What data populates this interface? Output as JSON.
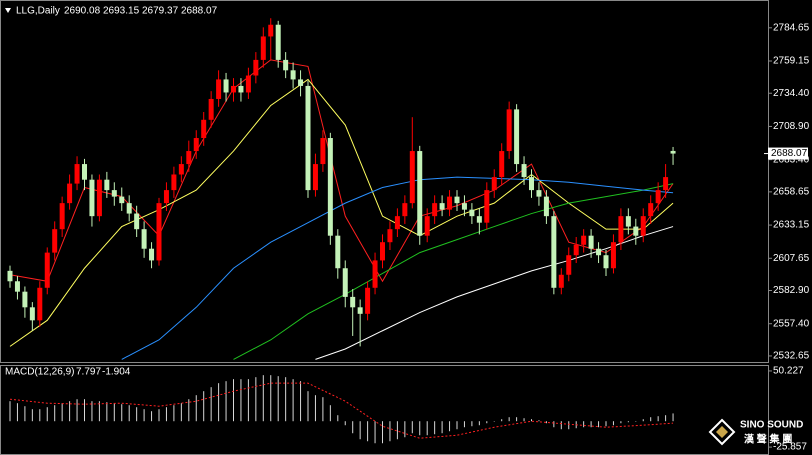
{
  "chart_data": [
    {
      "type": "candlestick",
      "title": "LLG,Daily",
      "open": [
        2598,
        2590,
        2582,
        2570,
        2560,
        2585,
        2612,
        2630,
        2650,
        2665,
        2680,
        2668,
        2640,
        2668,
        2660,
        2655,
        2650,
        2642,
        2630,
        2615,
        2606,
        2650,
        2660,
        2672,
        2680,
        2690,
        2700,
        2714,
        2730,
        2745,
        2735,
        2740,
        2735,
        2748,
        2760,
        2778,
        2787,
        2760,
        2752,
        2745,
        2740,
        2660,
        2680,
        2700,
        2625,
        2600,
        2578,
        2570,
        2565,
        2585,
        2606,
        2620,
        2630,
        2640,
        2650,
        2690,
        2625,
        2640,
        2650,
        2645,
        2655,
        2650,
        2645,
        2640,
        2635,
        2660,
        2670,
        2690,
        2722,
        2680,
        2670,
        2660,
        2655,
        2640,
        2585,
        2595,
        2610,
        2618,
        2625,
        2615,
        2610,
        2600,
        2620,
        2640,
        2632,
        2625,
        2640,
        2650,
        2660,
        2690.08
      ],
      "high": [
        2602,
        2594,
        2586,
        2574,
        2590,
        2616,
        2636,
        2655,
        2672,
        2686,
        2684,
        2672,
        2672,
        2674,
        2666,
        2662,
        2656,
        2648,
        2636,
        2620,
        2654,
        2666,
        2678,
        2686,
        2698,
        2706,
        2720,
        2736,
        2752,
        2750,
        2746,
        2746,
        2754,
        2766,
        2785,
        2792,
        2790,
        2766,
        2758,
        2752,
        2744,
        2688,
        2706,
        2704,
        2630,
        2606,
        2584,
        2576,
        2590,
        2612,
        2626,
        2636,
        2646,
        2656,
        2716,
        2694,
        2646,
        2656,
        2656,
        2660,
        2660,
        2656,
        2650,
        2646,
        2666,
        2676,
        2696,
        2728,
        2726,
        2686,
        2676,
        2666,
        2660,
        2644,
        2600,
        2616,
        2624,
        2630,
        2630,
        2620,
        2614,
        2626,
        2646,
        2646,
        2638,
        2646,
        2656,
        2666,
        2680,
        2693.15
      ],
      "low": [
        2585,
        2576,
        2562,
        2552,
        2555,
        2580,
        2606,
        2624,
        2645,
        2660,
        2660,
        2632,
        2636,
        2654,
        2648,
        2644,
        2636,
        2624,
        2608,
        2600,
        2602,
        2644,
        2654,
        2666,
        2674,
        2684,
        2694,
        2708,
        2724,
        2728,
        2728,
        2728,
        2730,
        2742,
        2754,
        2760,
        2754,
        2746,
        2738,
        2732,
        2654,
        2655,
        2674,
        2618,
        2592,
        2570,
        2548,
        2540,
        2560,
        2580,
        2600,
        2614,
        2624,
        2634,
        2646,
        2618,
        2620,
        2634,
        2640,
        2640,
        2644,
        2640,
        2634,
        2626,
        2630,
        2654,
        2664,
        2684,
        2674,
        2664,
        2654,
        2648,
        2634,
        2580,
        2580,
        2590,
        2604,
        2612,
        2608,
        2604,
        2594,
        2596,
        2614,
        2626,
        2618,
        2620,
        2634,
        2644,
        2654,
        2679.37
      ],
      "close": [
        2590,
        2582,
        2570,
        2560,
        2585,
        2612,
        2630,
        2650,
        2665,
        2680,
        2668,
        2640,
        2668,
        2660,
        2655,
        2650,
        2642,
        2630,
        2615,
        2606,
        2650,
        2660,
        2672,
        2680,
        2690,
        2700,
        2714,
        2730,
        2745,
        2735,
        2740,
        2735,
        2748,
        2760,
        2778,
        2787,
        2760,
        2752,
        2745,
        2740,
        2660,
        2680,
        2700,
        2625,
        2600,
        2578,
        2570,
        2565,
        2585,
        2606,
        2620,
        2630,
        2640,
        2650,
        2690,
        2625,
        2640,
        2650,
        2645,
        2655,
        2650,
        2645,
        2640,
        2635,
        2660,
        2670,
        2690,
        2722,
        2680,
        2670,
        2660,
        2655,
        2640,
        2585,
        2595,
        2610,
        2618,
        2625,
        2615,
        2610,
        2600,
        2620,
        2640,
        2632,
        2625,
        2640,
        2650,
        2660,
        2670,
        2688.07
      ],
      "up_color": "#ff0000",
      "down_color": "#c4f2b8",
      "series": [
        {
          "color": "#ff2020",
          "x": [
            0,
            5,
            10,
            15,
            20,
            25,
            30,
            35,
            40,
            45,
            50,
            55,
            60,
            65,
            70,
            75,
            80,
            85,
            89
          ],
          "values": [
            2595,
            2590,
            2662,
            2655,
            2625,
            2690,
            2738,
            2760,
            2755,
            2640,
            2590,
            2640,
            2648,
            2660,
            2680,
            2620,
            2612,
            2632,
            2665
          ]
        },
        {
          "color": "#ffff60",
          "x": [
            0,
            5,
            10,
            15,
            20,
            25,
            30,
            35,
            40,
            45,
            50,
            55,
            60,
            65,
            70,
            75,
            80,
            85,
            89
          ],
          "values": [
            2540,
            2560,
            2600,
            2632,
            2645,
            2660,
            2690,
            2725,
            2745,
            2710,
            2640,
            2625,
            2640,
            2650,
            2672,
            2650,
            2630,
            2630,
            2650
          ]
        },
        {
          "color": "#20c020",
          "x": [
            30,
            35,
            40,
            45,
            50,
            55,
            60,
            65,
            70,
            75,
            80,
            85,
            89
          ],
          "values": [
            2530,
            2545,
            2565,
            2580,
            2596,
            2612,
            2622,
            2632,
            2642,
            2650,
            2655,
            2660,
            2665
          ]
        },
        {
          "color": "#2a90ff",
          "x": [
            15,
            20,
            25,
            30,
            35,
            40,
            45,
            50,
            55,
            60,
            65,
            70,
            75,
            80,
            85,
            89
          ],
          "values": [
            2530,
            2545,
            2570,
            2600,
            2620,
            2635,
            2650,
            2662,
            2668,
            2670,
            2669,
            2668,
            2666,
            2663,
            2660,
            2658
          ]
        },
        {
          "color": "#ffffff",
          "x": [
            41,
            45,
            50,
            55,
            60,
            65,
            70,
            75,
            80,
            85,
            89
          ],
          "values": [
            2530,
            2538,
            2552,
            2566,
            2578,
            2588,
            2598,
            2606,
            2615,
            2625,
            2632
          ]
        }
      ],
      "ylim": [
        2528,
        2806
      ],
      "yticks": [
        2784.65,
        2759.15,
        {
          "value": 2734.4,
          "label": "2734.40"
        },
        {
          "value": 2708.9,
          "label": "2708.90"
        },
        {
          "value": 2683.4,
          "label": "2683.40"
        },
        2658.65,
        2633.15,
        2607.65,
        {
          "value": 2582.9,
          "label": "2582.90"
        },
        {
          "value": 2557.4,
          "label": "2557.40"
        },
        2532.65
      ]
    },
    {
      "type": "macd",
      "title": "MACD(12,26,9)",
      "values": [
        20,
        18,
        15,
        12,
        12,
        14,
        16,
        18,
        20,
        22,
        22,
        20,
        20,
        19,
        18,
        17,
        16,
        14,
        12,
        10,
        12,
        14,
        16,
        18,
        22,
        26,
        30,
        34,
        38,
        40,
        42,
        42,
        42,
        44,
        46,
        46,
        45,
        44,
        42,
        40,
        30,
        26,
        24,
        16,
        6,
        -4,
        -12,
        -18,
        -20,
        -22,
        -22,
        -20,
        -18,
        -16,
        -12,
        -14,
        -14,
        -13,
        -12,
        -10,
        -8,
        -6,
        -5,
        -4,
        -2,
        0,
        2,
        4,
        4,
        3,
        2,
        1,
        -2,
        -6,
        -8,
        -8,
        -7,
        -6,
        -6,
        -6,
        -5,
        -4,
        -2,
        -1,
        0,
        2,
        4,
        5,
        6,
        7.797
      ],
      "color": "#d8d8d8",
      "signal": {
        "color": "#ff2020",
        "x": [
          0,
          5,
          10,
          15,
          20,
          25,
          30,
          35,
          40,
          45,
          50,
          55,
          60,
          65,
          70,
          75,
          80,
          85,
          89
        ],
        "values": [
          22,
          18,
          17,
          18,
          15,
          20,
          30,
          38,
          38,
          20,
          -5,
          -17,
          -14,
          -6,
          0,
          -3,
          -6,
          -4,
          -1.904
        ]
      },
      "ylim": [
        -33.75,
        55.16
      ],
      "yticks": [
        50.227,
        -25.857
      ]
    }
  ],
  "watermark": {
    "name": "SINO SOUND",
    "chinese": "漢 聲 集 團"
  }
}
